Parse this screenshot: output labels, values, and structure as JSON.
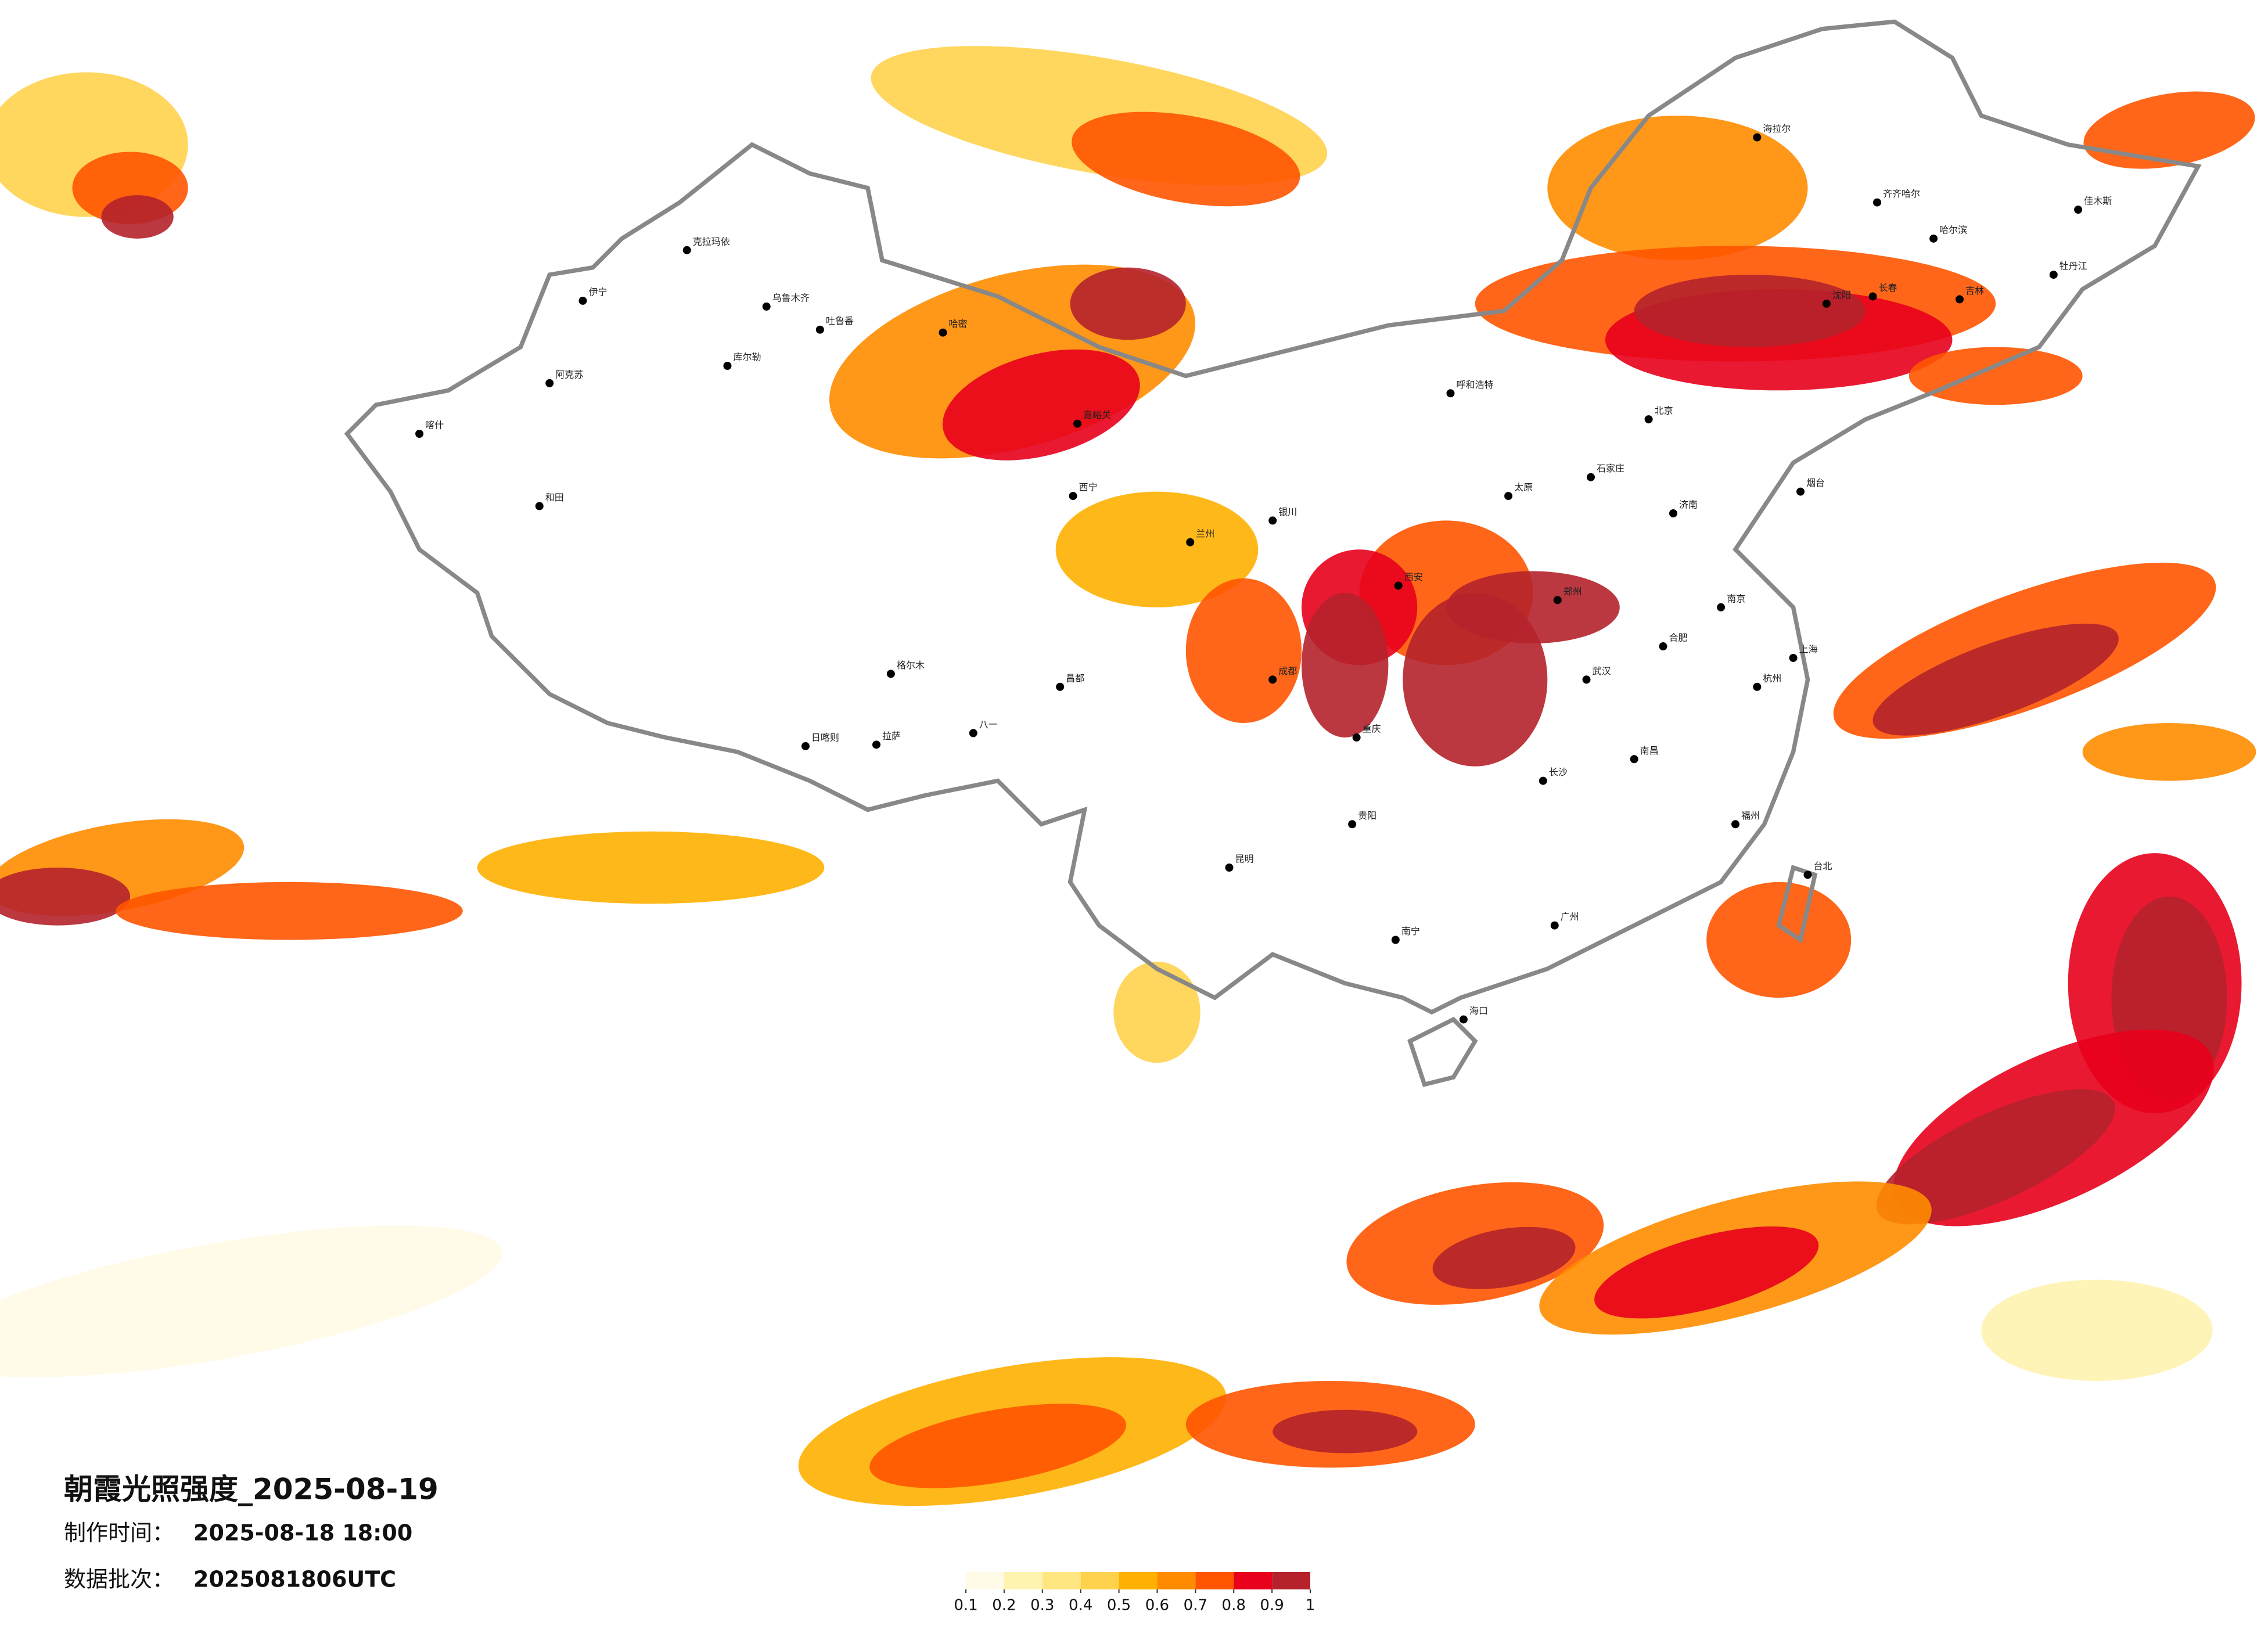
{
  "title": "朝霞光照强度_2025-08-19",
  "made_time": {
    "label": "制作时间：",
    "value": "2025-08-18 18:00"
  },
  "batch": {
    "label": "数据批次：",
    "value": "2025081806UTC"
  },
  "legend": {
    "colors": [
      "#fffbe6",
      "#fff3b0",
      "#ffe680",
      "#ffd24d",
      "#ffb000",
      "#ff8c00",
      "#ff5500",
      "#e8001c",
      "#b5222b"
    ],
    "ticks": [
      0.1,
      0.2,
      0.3,
      0.4,
      0.5,
      0.6,
      0.7,
      0.8,
      0.9,
      1
    ]
  },
  "cities": [
    "克拉玛依",
    "乌鲁木齐",
    "伊宁",
    "吐鲁番",
    "库尔勒",
    "阿克苏",
    "喀什",
    "和田",
    "哈密",
    "嘉峪关",
    "西宁",
    "格尔木",
    "拉萨",
    "日喀则",
    "八一",
    "昌都",
    "银川",
    "呼和浩特",
    "北京",
    "石家庄",
    "太原",
    "济南",
    "郑州",
    "西安",
    "兰州",
    "成都",
    "重庆",
    "贵阳",
    "昆明",
    "南宁",
    "广州",
    "海口",
    "长沙",
    "武汉",
    "南昌",
    "合肥",
    "南京",
    "上海",
    "杭州",
    "福州",
    "台北",
    "沈阳",
    "长春",
    "哈尔滨",
    "齐齐哈尔",
    "海拉尔",
    "佳木斯",
    "牡丹江",
    "吉林",
    "烟台"
  ]
}
